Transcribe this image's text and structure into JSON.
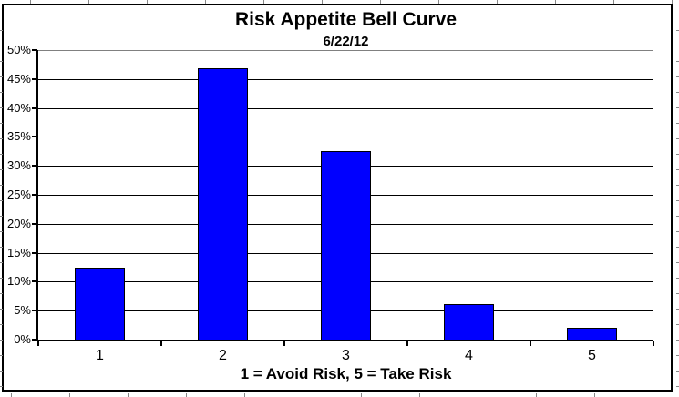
{
  "chart_data": {
    "type": "bar",
    "title": "Risk Appetite Bell Curve",
    "subtitle": "6/22/12",
    "xlabel": "1 = Avoid Risk, 5 = Take Risk",
    "ylabel": "",
    "categories": [
      "1",
      "2",
      "3",
      "4",
      "5"
    ],
    "values": [
      12.4,
      46.9,
      32.6,
      6.1,
      2.0
    ],
    "ylim": [
      0,
      50
    ],
    "ytick_step": 5,
    "ytick_labels": [
      "0%",
      "5%",
      "10%",
      "15%",
      "20%",
      "25%",
      "30%",
      "35%",
      "40%",
      "45%",
      "50%"
    ],
    "grid": "on",
    "legend": "none",
    "colors": {
      "bar_fill": "#0000ff",
      "bar_border": "#000000",
      "gridline": "#000000",
      "plot_border": "#808080",
      "axis": "#000000",
      "frame": "#000000",
      "text": "#000000"
    }
  }
}
